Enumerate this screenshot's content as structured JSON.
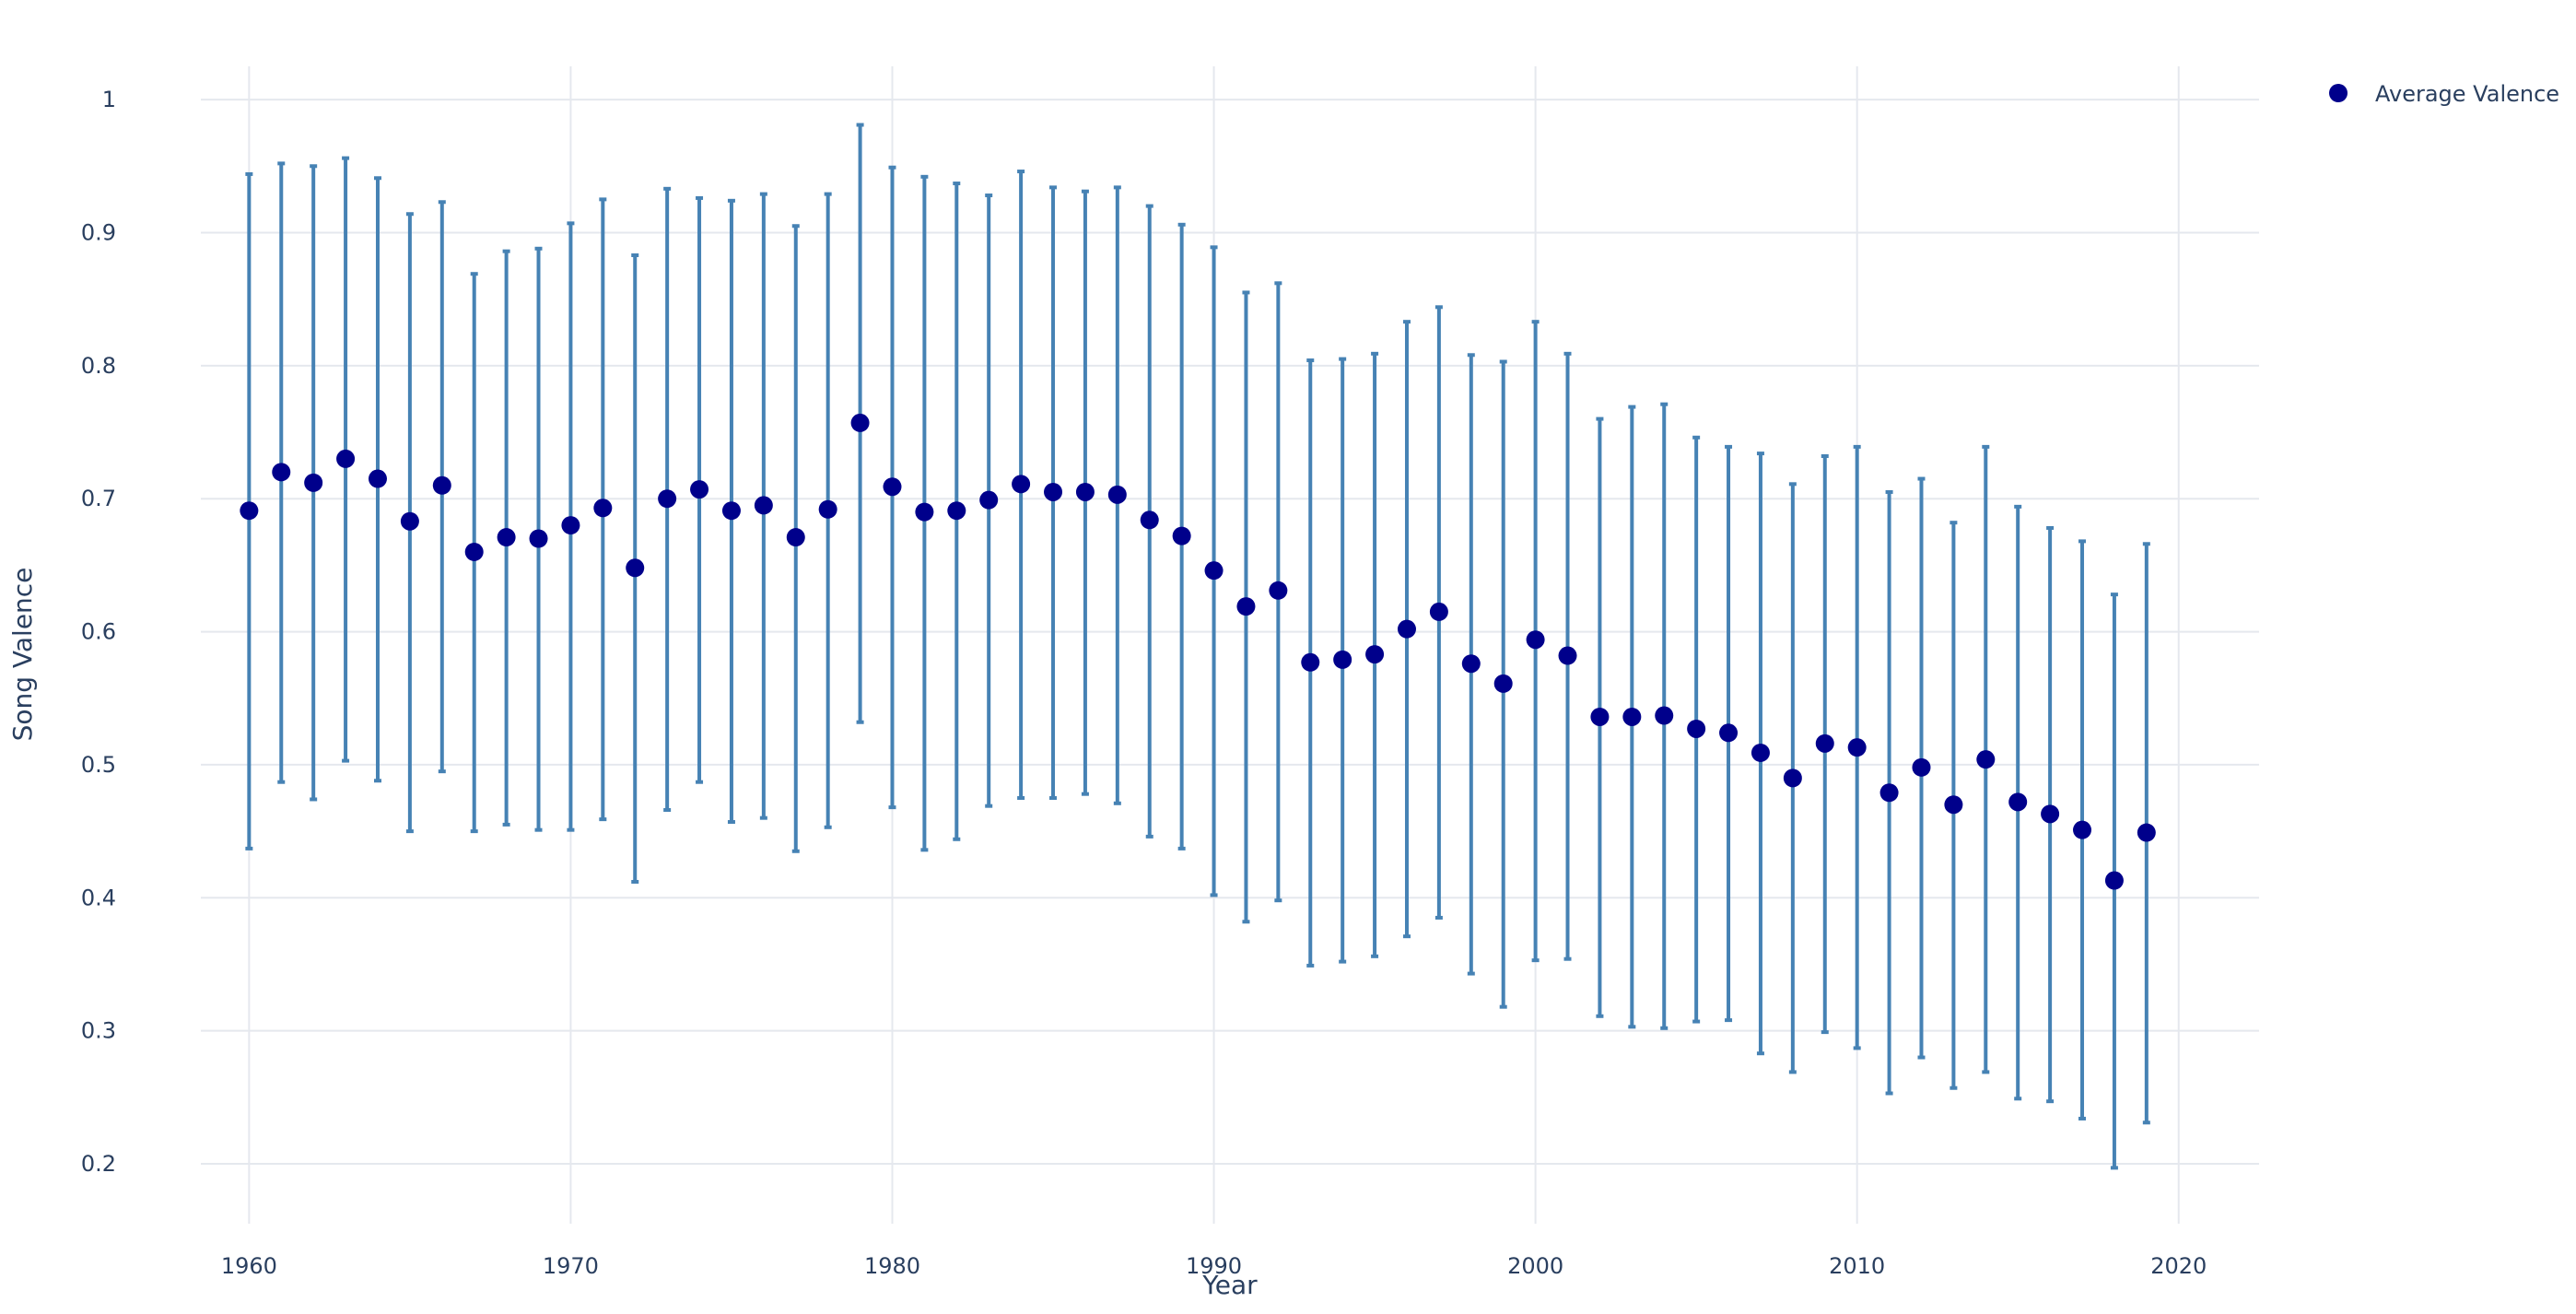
{
  "chart_data": {
    "type": "scatter",
    "xlabel": "Year",
    "ylabel": "Song Valence",
    "xlim": [
      1958.5,
      2022.5
    ],
    "ylim": [
      0.155,
      1.025
    ],
    "x_ticks": [
      1960,
      1970,
      1980,
      1990,
      2000,
      2010,
      2020
    ],
    "y_ticks": [
      0.2,
      0.3,
      0.4,
      0.5,
      0.6,
      0.7,
      0.8,
      0.9,
      1
    ],
    "grid": true,
    "legend_position": "top-right",
    "colors": {
      "marker": "#00008b",
      "error_bar": "#4682b4",
      "grid": "#e5e8ee",
      "text": "#2a3f5f"
    },
    "series": [
      {
        "name": "Average Valence",
        "x": [
          1960,
          1961,
          1962,
          1963,
          1964,
          1965,
          1966,
          1967,
          1968,
          1969,
          1970,
          1971,
          1972,
          1973,
          1974,
          1975,
          1976,
          1977,
          1978,
          1979,
          1980,
          1981,
          1982,
          1983,
          1984,
          1985,
          1986,
          1987,
          1988,
          1989,
          1990,
          1991,
          1992,
          1993,
          1994,
          1995,
          1996,
          1997,
          1998,
          1999,
          2000,
          2001,
          2002,
          2003,
          2004,
          2005,
          2006,
          2007,
          2008,
          2009,
          2010,
          2011,
          2012,
          2013,
          2014,
          2015,
          2016,
          2017,
          2018,
          2019
        ],
        "y": [
          0.691,
          0.72,
          0.712,
          0.73,
          0.715,
          0.683,
          0.71,
          0.66,
          0.671,
          0.67,
          0.68,
          0.693,
          0.648,
          0.7,
          0.707,
          0.691,
          0.695,
          0.671,
          0.692,
          0.757,
          0.709,
          0.69,
          0.691,
          0.699,
          0.711,
          0.705,
          0.705,
          0.703,
          0.684,
          0.672,
          0.646,
          0.619,
          0.631,
          0.577,
          0.579,
          0.583,
          0.602,
          0.615,
          0.576,
          0.561,
          0.594,
          0.582,
          0.536,
          0.536,
          0.537,
          0.527,
          0.524,
          0.509,
          0.49,
          0.516,
          0.513,
          0.479,
          0.498,
          0.47,
          0.504,
          0.472,
          0.463,
          0.451,
          0.413,
          0.449
        ],
        "y_upper": [
          0.944,
          0.952,
          0.95,
          0.956,
          0.941,
          0.914,
          0.923,
          0.869,
          0.886,
          0.888,
          0.907,
          0.925,
          0.883,
          0.933,
          0.926,
          0.924,
          0.929,
          0.905,
          0.929,
          0.981,
          0.949,
          0.942,
          0.937,
          0.928,
          0.946,
          0.934,
          0.931,
          0.934,
          0.92,
          0.906,
          0.889,
          0.855,
          0.862,
          0.804,
          0.805,
          0.809,
          0.833,
          0.844,
          0.808,
          0.803,
          0.833,
          0.809,
          0.76,
          0.769,
          0.771,
          0.746,
          0.739,
          0.734,
          0.711,
          0.732,
          0.739,
          0.705,
          0.715,
          0.682,
          0.739,
          0.694,
          0.678,
          0.668,
          0.628,
          0.666
        ],
        "y_lower": [
          0.437,
          0.487,
          0.474,
          0.503,
          0.488,
          0.45,
          0.495,
          0.45,
          0.455,
          0.451,
          0.451,
          0.459,
          0.412,
          0.466,
          0.487,
          0.457,
          0.46,
          0.435,
          0.453,
          0.532,
          0.468,
          0.436,
          0.444,
          0.469,
          0.475,
          0.475,
          0.478,
          0.471,
          0.446,
          0.437,
          0.402,
          0.382,
          0.398,
          0.349,
          0.352,
          0.356,
          0.371,
          0.385,
          0.343,
          0.318,
          0.353,
          0.354,
          0.311,
          0.303,
          0.302,
          0.307,
          0.308,
          0.283,
          0.269,
          0.299,
          0.287,
          0.253,
          0.28,
          0.257,
          0.269,
          0.249,
          0.247,
          0.234,
          0.197,
          0.231
        ]
      }
    ]
  }
}
